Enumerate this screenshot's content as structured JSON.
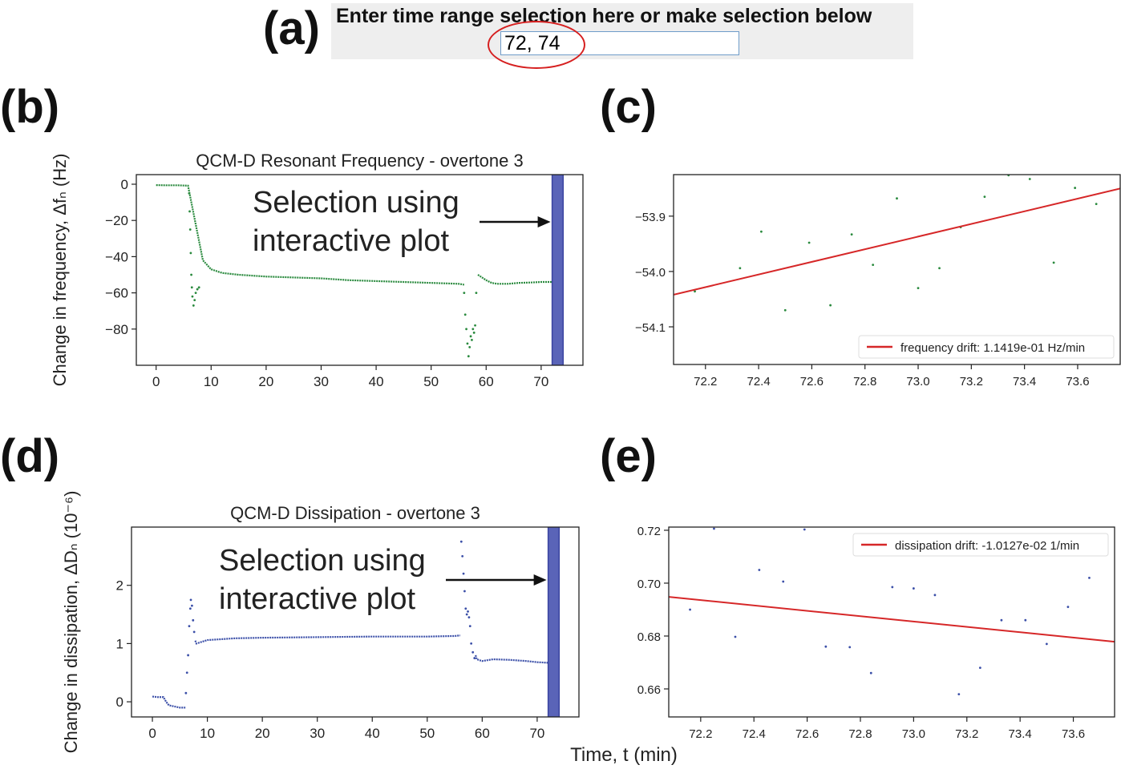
{
  "panel_labels": {
    "a": "(a)",
    "b": "(b)",
    "c": "(c)",
    "d": "(d)",
    "e": "(e)"
  },
  "time_range": {
    "prompt": "Enter time range selection here or make selection below",
    "value": "72, 74"
  },
  "colors": {
    "frequency": "#2a8a3e",
    "dissipation": "#3b4fa8",
    "fit": "#d62728",
    "selection": "#5a64b8",
    "highlight": "#d62020"
  },
  "chart_data": [
    {
      "id": "b",
      "type": "line",
      "title": "QCM-D Resonant Frequency - overtone 3",
      "ylabel": "Change in frequency, Δfₙ (Hz)",
      "xlabel": "",
      "xlim": [
        -3.6,
        77.6
      ],
      "ylim": [
        -100,
        5.3
      ],
      "xticks": [
        0,
        10,
        20,
        30,
        40,
        50,
        60,
        70
      ],
      "yticks": [
        0,
        -20,
        -40,
        -60,
        -80
      ],
      "selection": [
        72,
        74
      ],
      "annotation": "Selection using\ninteractive plot",
      "series": [
        {
          "x": [
            0,
            2,
            4,
            5.8,
            8.5,
            10,
            12,
            15,
            20,
            25,
            30,
            35,
            40,
            45,
            50,
            55,
            56
          ],
          "y": [
            -0.5,
            -0.6,
            -0.6,
            -0.8,
            -42,
            -47,
            -49,
            -50,
            -51,
            -51.5,
            -52,
            -53,
            -53.5,
            -54,
            -54.5,
            -55,
            -55.5
          ]
        },
        {
          "x": [
            58.5,
            59,
            60,
            61,
            62,
            64,
            66,
            68,
            70,
            72,
            74
          ],
          "y": [
            -50,
            -51,
            -53,
            -54.5,
            -55,
            -55,
            -54.5,
            -54.3,
            -54,
            -54,
            -54
          ]
        }
      ],
      "scatter": {
        "x": [
          6,
          6.1,
          6.2,
          6.3,
          6.4,
          6.5,
          6.6,
          6.8,
          7,
          7.2,
          7.5,
          7.8,
          56,
          56.2,
          56.4,
          56.6,
          56.8,
          57,
          57.2,
          57.4,
          57.6,
          57.8,
          58,
          58.2
        ],
        "y": [
          -5,
          -15,
          -25,
          -38,
          -50,
          -57,
          -62,
          -67,
          -64,
          -60,
          -58,
          -57,
          -60,
          -72,
          -80,
          -88,
          -95,
          -90,
          -84,
          -86,
          -80,
          -82,
          -78,
          -60
        ]
      }
    },
    {
      "id": "c",
      "type": "scatter",
      "title": "",
      "xlabel": "",
      "ylabel": "",
      "xlim": [
        72.08,
        73.76
      ],
      "ylim": [
        -54.168,
        -53.825
      ],
      "xticks": [
        72.2,
        72.4,
        72.6,
        72.8,
        73.0,
        73.2,
        73.4,
        73.6
      ],
      "yticks": [
        -53.9,
        -54.0,
        -54.1
      ],
      "x": [
        72.16,
        72.33,
        72.41,
        72.5,
        72.59,
        72.67,
        72.75,
        72.83,
        72.92,
        73.0,
        73.08,
        73.16,
        73.25,
        73.34,
        73.42,
        73.51,
        73.59,
        73.67
      ],
      "y": [
        -54.036,
        -53.994,
        -53.928,
        -54.07,
        -53.948,
        -54.061,
        -53.933,
        -53.988,
        -53.868,
        -54.03,
        -53.994,
        -53.92,
        -53.865,
        -53.826,
        -53.833,
        -53.984,
        -53.849,
        -53.878
      ],
      "fit": {
        "slope": 0.11419,
        "x0": 72.08,
        "y0": -54.042
      },
      "legend": "frequency drift: 1.1419e-01 Hz/min",
      "legend_position": "lower-right"
    },
    {
      "id": "d",
      "type": "line",
      "title": "QCM-D Dissipation - overtone 3",
      "ylabel": "Change in dissipation, ΔDₙ (10⁻⁶)",
      "xlabel": "Time, t (min)",
      "xlim": [
        -3.8,
        77.6
      ],
      "ylim": [
        -0.26,
        3.0
      ],
      "xticks": [
        0,
        10,
        20,
        30,
        40,
        50,
        60,
        70
      ],
      "yticks": [
        0,
        1,
        2
      ],
      "selection": [
        72,
        74
      ],
      "annotation": "Selection using\ninteractive plot",
      "series": [
        {
          "x": [
            0,
            1,
            2,
            2.5,
            3,
            4,
            5,
            6
          ],
          "y": [
            0.09,
            0.08,
            0.08,
            0.0,
            -0.06,
            -0.08,
            -0.1,
            -0.1
          ]
        },
        {
          "x": [
            7.8,
            8,
            9,
            10,
            15,
            20,
            30,
            40,
            50,
            55,
            56
          ],
          "y": [
            1.05,
            1.0,
            1.03,
            1.06,
            1.09,
            1.1,
            1.11,
            1.12,
            1.12,
            1.13,
            1.14
          ]
        },
        {
          "x": [
            58.8,
            59,
            60,
            62,
            65,
            68,
            70,
            72,
            74
          ],
          "y": [
            0.8,
            0.73,
            0.7,
            0.73,
            0.72,
            0.7,
            0.68,
            0.67,
            0.67
          ]
        }
      ],
      "scatter": {
        "x": [
          6.1,
          6.3,
          6.5,
          6.7,
          6.9,
          7,
          7.2,
          7.4,
          7.6,
          56.2,
          56.4,
          56.6,
          56.8,
          57,
          57.2,
          57.4,
          57.6,
          57.8,
          58,
          58.3,
          58.6
        ],
        "y": [
          0.15,
          0.5,
          0.8,
          1.3,
          1.6,
          1.75,
          1.65,
          1.4,
          1.2,
          2.75,
          2.5,
          2.2,
          1.9,
          1.6,
          1.5,
          1.55,
          1.45,
          1.3,
          1.0,
          0.85,
          0.75
        ]
      }
    },
    {
      "id": "e",
      "type": "scatter",
      "title": "",
      "xlabel": "",
      "ylabel": "",
      "xlim": [
        72.08,
        73.755
      ],
      "ylim": [
        0.6494,
        0.7212
      ],
      "xticks": [
        72.2,
        72.4,
        72.6,
        72.8,
        73.0,
        73.2,
        73.4,
        73.6
      ],
      "yticks": [
        0.72,
        0.7,
        0.68,
        0.66
      ],
      "x": [
        72.16,
        72.25,
        72.33,
        72.42,
        72.51,
        72.59,
        72.67,
        72.76,
        72.84,
        72.92,
        73.0,
        73.08,
        73.17,
        73.25,
        73.33,
        73.42,
        73.5,
        73.58,
        73.66
      ],
      "y": [
        0.69,
        0.7206,
        0.6797,
        0.705,
        0.7006,
        0.7203,
        0.676,
        0.6758,
        0.666,
        0.6985,
        0.698,
        0.6955,
        0.658,
        0.668,
        0.686,
        0.686,
        0.677,
        0.691,
        0.702
      ],
      "fit": {
        "slope": -0.010127,
        "x0": 72.08,
        "y0": 0.6948
      },
      "legend": "dissipation drift: -1.0127e-02 1/min",
      "legend_position": "upper-right"
    }
  ]
}
